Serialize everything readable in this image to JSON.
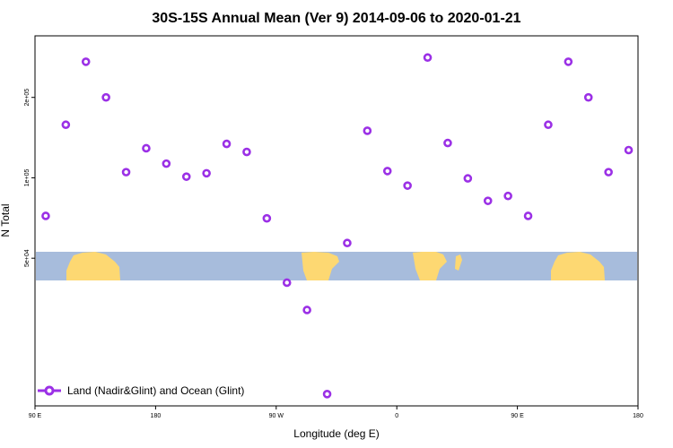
{
  "chart_data": {
    "type": "scatter",
    "title": "30S-15S Annual Mean (Ver 9)   2014-09-06 to 2020-01-21",
    "xlabel": "Longitude (deg E)",
    "ylabel": "N Total",
    "x_ticks": [
      {
        "value": 90,
        "label": "90 E"
      },
      {
        "value": 180,
        "label": "180"
      },
      {
        "value": 270,
        "label": "90 W"
      },
      {
        "value": 360,
        "label": "0"
      },
      {
        "value": 450,
        "label": "90 E"
      },
      {
        "value": 540,
        "label": "180"
      }
    ],
    "y_ticks": [
      {
        "value": 50000,
        "label": "5e+04"
      },
      {
        "value": 100000,
        "label": "1e+05"
      },
      {
        "value": 200000,
        "label": "2e+05"
      }
    ],
    "y_scale": "log",
    "xlim": [
      90,
      540
    ],
    "ylim": [
      14000,
      340000
    ],
    "legend": {
      "position": "bottom-left",
      "label": "Land (Nadir&Glint) and Ocean (Glint)"
    },
    "marker_color": "#9b30e6",
    "ocean_color": "#a7bcdc",
    "land_color": "#fdd872",
    "series": [
      {
        "x": [
          98,
          113,
          128,
          143,
          158,
          173,
          188,
          203,
          218,
          233,
          248,
          263,
          278,
          293,
          308,
          323,
          338,
          353,
          368,
          383,
          398,
          413,
          428,
          443,
          458,
          473,
          488,
          503,
          518,
          533
        ],
        "y": [
          72000,
          158000,
          272000,
          200000,
          105000,
          129000,
          113000,
          101000,
          104000,
          134000,
          125000,
          70500,
          40500,
          32000,
          15500,
          57000,
          150000,
          106000,
          93500,
          282000,
          135000,
          99500,
          82000,
          85500,
          72000,
          158000,
          272000,
          200000,
          105000,
          127000
        ]
      }
    ]
  }
}
